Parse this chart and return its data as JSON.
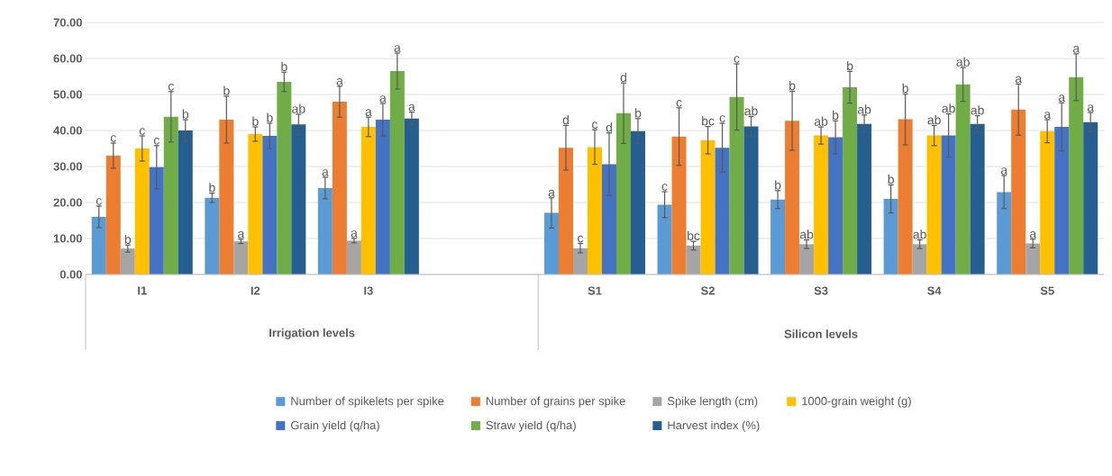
{
  "chart_data": {
    "type": "bar",
    "categories": [
      "I1",
      "I2",
      "I3",
      null,
      "S1",
      "S2",
      "S3",
      "S4",
      "S5"
    ],
    "ylim": [
      0,
      70
    ],
    "yticks": [
      {
        "value": 0,
        "label": "0.00"
      },
      {
        "value": 10,
        "label": "10.00"
      },
      {
        "value": 20,
        "label": "20.00"
      },
      {
        "value": 30,
        "label": "30.00"
      },
      {
        "value": 40,
        "label": "40.00"
      },
      {
        "value": 50,
        "label": "50.00"
      },
      {
        "value": 60,
        "label": "60.00"
      },
      {
        "value": 70,
        "label": "70.00"
      }
    ],
    "grid": "y",
    "legend": "bottom",
    "annotations": [
      "Irrigation levels",
      "Silicon levels"
    ],
    "series": [
      {
        "name": "Number of spikelets per spike",
        "color": "#5b9bd5",
        "values": [
          16,
          21.3,
          24,
          null,
          17.1,
          19.4,
          20.8,
          21,
          22.9
        ],
        "errors": [
          3,
          1.3,
          3,
          null,
          4.2,
          3.6,
          2.5,
          3.9,
          4.6
        ],
        "value_labels": [
          "c",
          "b",
          "a",
          null,
          "a",
          "c",
          "b",
          "b",
          "a"
        ]
      },
      {
        "name": "Number of grains per spike",
        "color": "#ed7d31",
        "values": [
          33,
          43,
          48,
          null,
          35.2,
          38.3,
          42.7,
          43.1,
          45.8
        ],
        "errors": [
          3.5,
          6.5,
          4.3,
          null,
          6.2,
          8,
          8.2,
          7.1,
          7.1
        ],
        "value_labels": [
          "c",
          "b",
          "a",
          null,
          "d",
          "c",
          "b",
          "b",
          "a"
        ]
      },
      {
        "name": "Spike length (cm)",
        "color": "#a5a5a5",
        "values": [
          7.2,
          9.2,
          9.4,
          null,
          7.3,
          8,
          8.4,
          8.4,
          8.6
        ],
        "errors": [
          1,
          0.6,
          0.6,
          null,
          1.3,
          1.2,
          1.2,
          1.2,
          1.2
        ],
        "value_labels": [
          "b",
          "a",
          "a",
          null,
          "c",
          "bc",
          "ab",
          "ab",
          "a"
        ]
      },
      {
        "name": "1000-grain weight (g)",
        "color": "#ffc000",
        "values": [
          35,
          39,
          41,
          null,
          35.4,
          37.3,
          38.6,
          38.6,
          39.8
        ],
        "errors": [
          3.5,
          2,
          2.7,
          null,
          4.8,
          3.8,
          2.4,
          2.8,
          3.2
        ],
        "value_labels": [
          "c",
          "b",
          "a",
          null,
          "c",
          "bc",
          "ab",
          "ab",
          "a"
        ]
      },
      {
        "name": "Grain yield (q/ha)",
        "color": "#4472c4",
        "values": [
          29.8,
          38.5,
          43,
          null,
          30.6,
          35.2,
          38.1,
          38.6,
          41
        ],
        "errors": [
          6,
          3.5,
          4.5,
          null,
          8.7,
          6.8,
          4.6,
          6,
          6.7
        ],
        "value_labels": [
          "c",
          "b",
          "a",
          null,
          "d",
          "c",
          "b",
          "ab",
          "a"
        ]
      },
      {
        "name": "Straw yield (q/ha)",
        "color": "#70ad47",
        "values": [
          43.8,
          53.5,
          56.5,
          null,
          44.8,
          49.3,
          52,
          52.8,
          54.8
        ],
        "errors": [
          7,
          2.7,
          5,
          null,
          8.4,
          9.2,
          4.4,
          4.7,
          6.5
        ],
        "value_labels": [
          "c",
          "b",
          "a",
          null,
          "d",
          "c",
          "b",
          "ab",
          "a"
        ]
      },
      {
        "name": "Harvest index (%)",
        "color": "#255e91",
        "values": [
          40,
          41.7,
          43.3,
          null,
          39.8,
          41.1,
          41.8,
          41.8,
          42.3
        ],
        "errors": [
          3,
          2.8,
          1.8,
          null,
          3.5,
          2.8,
          2.5,
          2.3,
          2.7
        ],
        "value_labels": [
          "b",
          "ab",
          "a",
          null,
          "b",
          "ab",
          "ab",
          "ab",
          "a"
        ]
      }
    ]
  }
}
